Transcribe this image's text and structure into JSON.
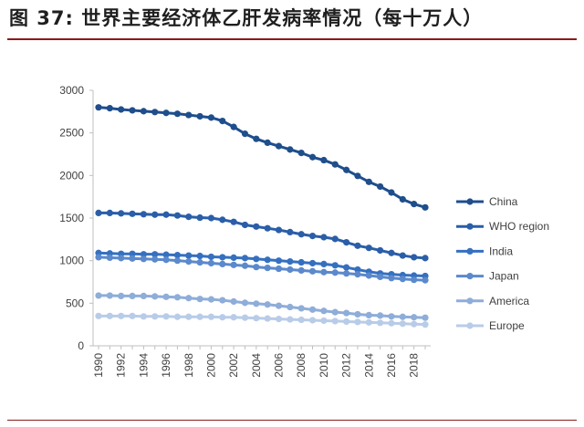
{
  "title": "图 37: 世界主要经济体乙肝发病率情况（每十万人）",
  "chart_data": {
    "type": "line",
    "x": [
      1990,
      1991,
      1992,
      1993,
      1994,
      1995,
      1996,
      1997,
      1998,
      1999,
      2000,
      2001,
      2002,
      2003,
      2004,
      2005,
      2006,
      2007,
      2008,
      2009,
      2010,
      2011,
      2012,
      2013,
      2014,
      2015,
      2016,
      2017,
      2018,
      2019
    ],
    "x_tick_labels": [
      "1990",
      "1992",
      "1994",
      "1996",
      "1998",
      "2000",
      "2002",
      "2004",
      "2006",
      "2008",
      "2010",
      "2012",
      "2014",
      "2016",
      "2018"
    ],
    "ylim": [
      0,
      3000
    ],
    "y_tick_labels": [
      "0",
      "500",
      "1000",
      "1500",
      "2000",
      "2500",
      "3000"
    ],
    "grid": false,
    "legend_position": "right",
    "series": [
      {
        "name": "China",
        "color": "#1f4e8c",
        "values": [
          2800,
          2790,
          2775,
          2765,
          2755,
          2745,
          2735,
          2725,
          2710,
          2695,
          2680,
          2640,
          2570,
          2490,
          2430,
          2385,
          2345,
          2305,
          2265,
          2215,
          2180,
          2130,
          2065,
          1995,
          1925,
          1870,
          1800,
          1720,
          1665,
          1625
        ]
      },
      {
        "name": "WHO region",
        "color": "#2a5ea8",
        "values": [
          1560,
          1560,
          1555,
          1550,
          1545,
          1540,
          1540,
          1530,
          1515,
          1505,
          1500,
          1480,
          1455,
          1420,
          1400,
          1380,
          1360,
          1335,
          1310,
          1290,
          1275,
          1255,
          1215,
          1175,
          1150,
          1120,
          1090,
          1060,
          1040,
          1030
        ]
      },
      {
        "name": "India",
        "color": "#3570c0",
        "values": [
          1090,
          1085,
          1080,
          1080,
          1075,
          1075,
          1070,
          1065,
          1060,
          1055,
          1045,
          1040,
          1035,
          1030,
          1020,
          1010,
          1000,
          990,
          980,
          970,
          960,
          945,
          920,
          895,
          870,
          850,
          840,
          830,
          825,
          820
        ]
      },
      {
        "name": "Japan",
        "color": "#5b89cc",
        "values": [
          1040,
          1035,
          1030,
          1025,
          1020,
          1015,
          1010,
          1000,
          990,
          980,
          970,
          960,
          950,
          940,
          925,
          915,
          905,
          895,
          885,
          875,
          865,
          860,
          850,
          840,
          825,
          810,
          795,
          785,
          775,
          770
        ]
      },
      {
        "name": "America",
        "color": "#8eadd9",
        "values": [
          590,
          590,
          585,
          585,
          585,
          580,
          575,
          570,
          560,
          550,
          545,
          535,
          520,
          505,
          495,
          485,
          470,
          455,
          440,
          425,
          410,
          395,
          385,
          370,
          360,
          355,
          345,
          340,
          335,
          330
        ]
      },
      {
        "name": "Europe",
        "color": "#b8cce8",
        "values": [
          350,
          350,
          350,
          350,
          345,
          345,
          345,
          340,
          340,
          340,
          340,
          335,
          335,
          330,
          325,
          320,
          315,
          310,
          305,
          300,
          295,
          290,
          285,
          280,
          275,
          270,
          265,
          260,
          255,
          250
        ]
      }
    ]
  }
}
